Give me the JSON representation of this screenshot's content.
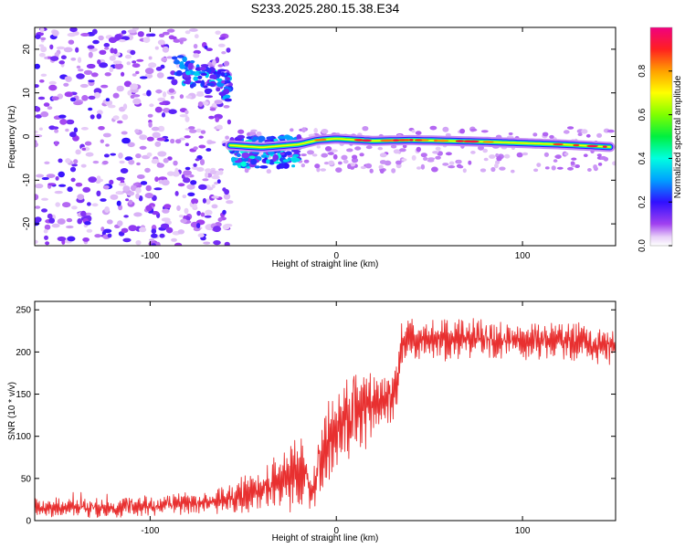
{
  "page_title": "S233.2025.280.15.38.E34",
  "chart_data": [
    {
      "type": "heatmap",
      "name": "spectrogram",
      "xlabel": "Height of straight line (km)",
      "ylabel": "Frequency (Hz)",
      "xlim": [
        -162,
        150
      ],
      "ylim": [
        -25,
        25
      ],
      "xticks": [
        -100,
        0,
        100
      ],
      "xtick_labels": [
        "-100",
        "0",
        "100"
      ],
      "yticks": [
        -20,
        -10,
        0,
        10,
        20
      ],
      "ytick_labels": [
        "-20",
        "-10",
        "0",
        "10",
        "20"
      ],
      "noise_region": {
        "x_range": [
          -162,
          -57
        ],
        "y_range": [
          -25,
          25
        ],
        "level": "low (0.1-0.3)"
      },
      "early_cluster": {
        "x_range": [
          -87,
          -57
        ],
        "y_range": [
          9,
          19
        ],
        "peak_amplitude": 0.3
      },
      "mid_cluster": {
        "x_range": [
          -57,
          -20
        ],
        "y_range": [
          -7,
          0
        ],
        "peak_amplitude": 0.35
      },
      "signal_track": {
        "description": "Bright narrow band near -1 to -3 Hz drifting slightly downward",
        "points": [
          [
            -57,
            -2
          ],
          [
            -40,
            -2.5
          ],
          [
            -20,
            -1.8
          ],
          [
            -10,
            -0.8
          ],
          [
            0,
            -0.5
          ],
          [
            20,
            -1
          ],
          [
            40,
            -0.8
          ],
          [
            60,
            -1
          ],
          [
            80,
            -1.2
          ],
          [
            100,
            -1.5
          ],
          [
            120,
            -1.8
          ],
          [
            148,
            -2.4
          ]
        ],
        "peak_amplitude": 0.95
      }
    },
    {
      "type": "bar",
      "name": "colorbar",
      "label": "Normalized spectral amplitude",
      "range": [
        0,
        1
      ],
      "ticks": [
        0,
        0.2,
        0.4,
        0.6,
        0.8
      ],
      "tick_labels": [
        "0.0",
        "0.2",
        "0.4",
        "0.6",
        "0.8"
      ]
    },
    {
      "type": "line",
      "name": "snr",
      "xlabel": "Height of straight line (km)",
      "ylabel": "SNR (10 * v/v)",
      "xlim": [
        -162,
        150
      ],
      "ylim": [
        0,
        260
      ],
      "xticks": [
        -100,
        0,
        100
      ],
      "xtick_labels": [
        "-100",
        "0",
        "100"
      ],
      "yticks": [
        0,
        50,
        100,
        150,
        200,
        250
      ],
      "ytick_labels": [
        "0",
        "50",
        "100",
        "150",
        "200",
        "250"
      ],
      "color": "#e83030",
      "trend_x": [
        -162,
        -120,
        -90,
        -70,
        -50,
        -40,
        -30,
        -20,
        -16,
        -14,
        -5,
        0,
        10,
        20,
        30,
        33,
        35,
        40,
        60,
        80,
        100,
        120,
        150
      ],
      "trend_y": [
        15,
        15,
        18,
        22,
        30,
        40,
        45,
        55,
        60,
        28,
        100,
        115,
        125,
        135,
        145,
        170,
        210,
        215,
        215,
        215,
        210,
        212,
        205
      ],
      "noise_amplitude": [
        10,
        10,
        12,
        14,
        20,
        25,
        35,
        45,
        55,
        25,
        50,
        50,
        45,
        40,
        35,
        30,
        25,
        22,
        22,
        22,
        20,
        22,
        20
      ]
    }
  ]
}
